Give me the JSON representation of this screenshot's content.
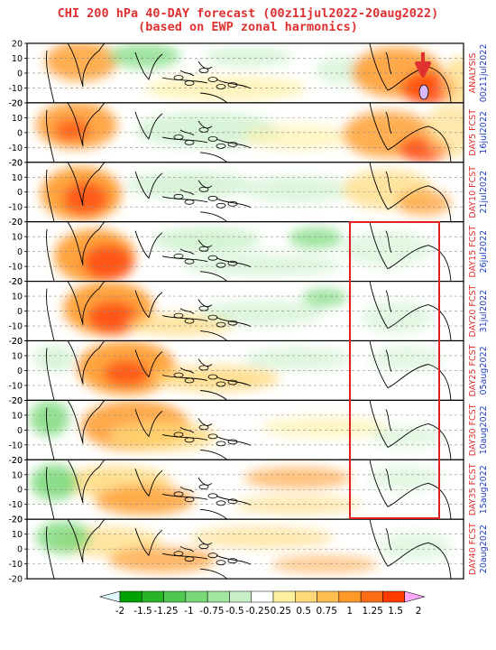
{
  "title_line1": "CHI 200 hPa 40-DAY forecast (00z11jul2022-20aug2022)",
  "title_line2": "(based on EWP zonal harmonics)",
  "y_tick_labels": [
    "20",
    "10",
    "0",
    "-10",
    "-20"
  ],
  "panels": [
    {
      "label_red": "ANALYSIS",
      "label_blue": "00z11jul2022"
    },
    {
      "label_red": "DAY5 FCST",
      "label_blue": "16jul2022"
    },
    {
      "label_red": "DAY10 FCST",
      "label_blue": "21jul2022"
    },
    {
      "label_red": "DAY15 FCST",
      "label_blue": "26jul2022"
    },
    {
      "label_red": "DAY20 FCST",
      "label_blue": "31jul2022"
    },
    {
      "label_red": "DAY25 FCST",
      "label_blue": "05aug2022"
    },
    {
      "label_red": "DAY30 FCST",
      "label_blue": "10aug2022"
    },
    {
      "label_red": "DAY35 FCST",
      "label_blue": "15aug2022"
    },
    {
      "label_red": "DAY40 FCST",
      "label_blue": "20aug2022"
    }
  ],
  "colorbar": {
    "labels": [
      "-2",
      "-1.5",
      "-1.25",
      "-1",
      "-0.75",
      "-0.5",
      "-0.25",
      "0.25",
      "0.5",
      "0.75",
      "1",
      "1.25",
      "1.5",
      "2"
    ],
    "colors": [
      "#00a000",
      "#28b428",
      "#50c850",
      "#78d878",
      "#a0e6a0",
      "#c8f0c8",
      "#ffffff",
      "#fff0a0",
      "#ffd878",
      "#ffbe50",
      "#ff9a28",
      "#ff6e14",
      "#ff3c00",
      "#ffaaff"
    ],
    "low_tip_color": "#e0f8ff"
  },
  "colors": {
    "title": "#e03030",
    "panel_label_red": "#e03030",
    "panel_label_blue": "#2040c0",
    "highlight_box": "#e02020",
    "arrow": "#e03030"
  }
}
